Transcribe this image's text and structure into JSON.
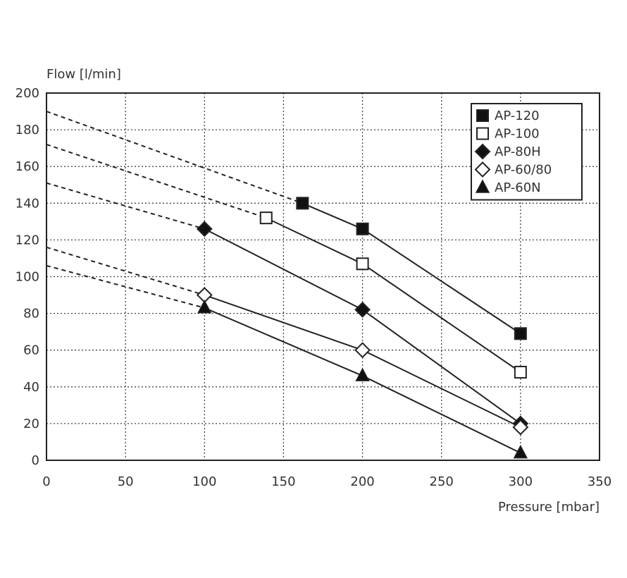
{
  "chart_data": {
    "type": "line",
    "title": "",
    "ylabel": "Flow [l/min]",
    "xlabel": "Pressure [mbar]",
    "xlim": [
      0,
      350
    ],
    "ylim": [
      0,
      200
    ],
    "xticks": [
      0,
      50,
      100,
      150,
      200,
      250,
      300,
      350
    ],
    "yticks": [
      0,
      20,
      40,
      60,
      80,
      100,
      120,
      140,
      160,
      180,
      200
    ],
    "xtick_labels": [
      "0",
      "50",
      "100",
      "150",
      "200",
      "250",
      "300",
      "350"
    ],
    "ytick_labels": [
      "0",
      "20",
      "40",
      "60",
      "80",
      "100",
      "120",
      "140",
      "160",
      "180",
      "200"
    ],
    "grid": true,
    "legend_position": "top-right",
    "series": [
      {
        "name": "AP-120",
        "marker": "square-filled",
        "x": [
          162,
          200,
          300
        ],
        "y": [
          140,
          126,
          69
        ],
        "extrapolated_from": {
          "x": 0,
          "y": 190
        }
      },
      {
        "name": "AP-100",
        "marker": "square-open",
        "x": [
          139,
          200,
          300
        ],
        "y": [
          132,
          107,
          48
        ],
        "extrapolated_from": {
          "x": 0,
          "y": 172
        }
      },
      {
        "name": "AP-80H",
        "marker": "diamond-filled",
        "x": [
          100,
          200,
          300
        ],
        "y": [
          126,
          82,
          20
        ],
        "extrapolated_from": {
          "x": 0,
          "y": 151
        }
      },
      {
        "name": "AP-60/80",
        "marker": "diamond-open",
        "x": [
          100,
          200,
          300
        ],
        "y": [
          90,
          60,
          18
        ],
        "extrapolated_from": {
          "x": 0,
          "y": 116
        }
      },
      {
        "name": "AP-60N",
        "marker": "triangle-filled",
        "x": [
          100,
          200,
          300
        ],
        "y": [
          83,
          46,
          4
        ],
        "extrapolated_from": {
          "x": 0,
          "y": 106
        }
      }
    ]
  },
  "colors": {
    "ink": "#222222",
    "marker_fill": "#111111",
    "open_fill": "#ffffff"
  }
}
